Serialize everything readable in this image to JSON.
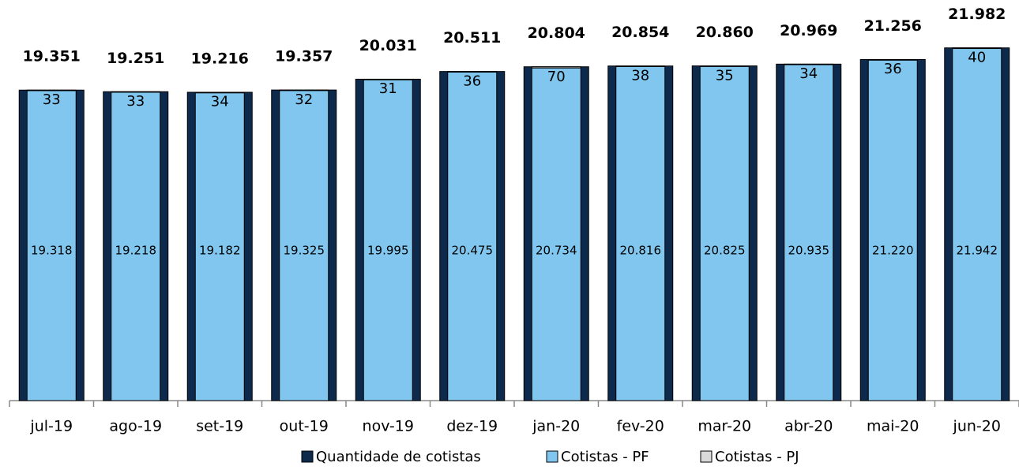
{
  "chart_data": {
    "type": "bar",
    "categories": [
      "jul-19",
      "ago-19",
      "set-19",
      "out-19",
      "nov-19",
      "dez-19",
      "jan-20",
      "fev-20",
      "mar-20",
      "abr-20",
      "mai-20",
      "jun-20"
    ],
    "series": [
      {
        "name": "Quantidade de cotistas",
        "color": "#0d2a4d",
        "values": [
          19351,
          19251,
          19216,
          19357,
          20031,
          20511,
          20804,
          20854,
          20860,
          20969,
          21256,
          21982
        ],
        "value_labels": [
          "19.351",
          "19.251",
          "19.216",
          "19.357",
          "20.031",
          "20.511",
          "20.804",
          "20.854",
          "20.860",
          "20.969",
          "21.256",
          "21.982"
        ]
      },
      {
        "name": "Cotistas - PF",
        "color": "#80c6ee",
        "values": [
          19318,
          19218,
          19182,
          19325,
          19995,
          20475,
          20734,
          20816,
          20825,
          20935,
          21220,
          21942
        ],
        "value_labels": [
          "19.318",
          "19.218",
          "19.182",
          "19.325",
          "19.995",
          "20.475",
          "20.734",
          "20.816",
          "20.825",
          "20.935",
          "21.220",
          "21.942"
        ]
      },
      {
        "name": "Cotistas - PJ",
        "color": "#d9d9d9",
        "values": [
          33,
          33,
          34,
          32,
          31,
          36,
          70,
          38,
          35,
          34,
          36,
          40
        ]
      }
    ],
    "ylim": [
      0,
      23000
    ]
  }
}
